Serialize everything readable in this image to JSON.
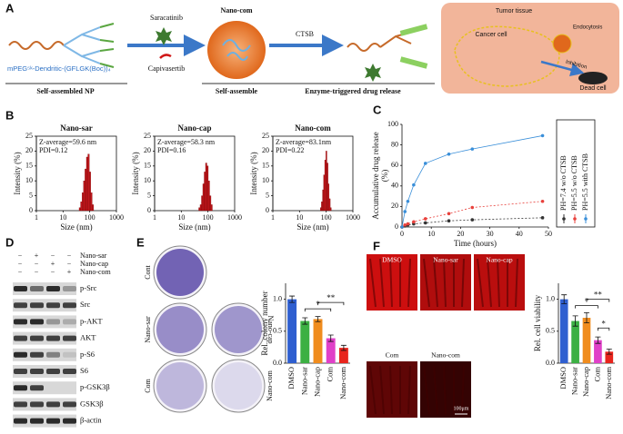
{
  "figure": {
    "panel_labels": [
      "A",
      "B",
      "C",
      "D",
      "E",
      "F"
    ],
    "schematic": {
      "drug1": "Saracatinib",
      "drug2": "Capivasertib",
      "particle": "Nano-com",
      "enzyme": "CTSB",
      "polymer": "mPEG⁵ᵏ-Dendritic-(GFLGK(Boc))₄",
      "steps": [
        "Self-assembled NP",
        "Self-assemble",
        "Enzyme-triggered drug release"
      ],
      "tissue": "Tumor tissue",
      "cell": "Cancer cell",
      "uptake": "Endocytosis",
      "inhibition": "Inhibition",
      "death": "Dead cell"
    },
    "western_blot": {
      "treatments": [
        "Nano-sar",
        "Nano-cap",
        "Nano-com"
      ],
      "signs": [
        [
          "−",
          "+",
          "−",
          "−"
        ],
        [
          "−",
          "−",
          "+",
          "−"
        ],
        [
          "−",
          "−",
          "−",
          "+"
        ]
      ],
      "proteins": [
        "p-Src",
        "Src",
        "p-AKT",
        "AKT",
        "p-S6",
        "S6",
        "p-GSK3β",
        "GSK3β",
        "β-actin"
      ]
    },
    "colony_labels": [
      "Cont",
      "Nano-sar",
      "Nano-cap",
      "Com",
      "Nano-com"
    ],
    "image_labels": [
      "DMSO",
      "Nano-sar",
      "Nano-cap",
      "Com",
      "Nano-com"
    ],
    "scale_bar": "100μm"
  },
  "chart_data": [
    {
      "type": "histogram",
      "title": "Nano-sar",
      "annotations": [
        "Z-average=59.6 nm",
        "PDI=0.12"
      ],
      "x_label": "Size (nm)",
      "y_label": "Intensity (%)",
      "bins": [
        40,
        45.3,
        51.4,
        58.3,
        66.1,
        74.9,
        84.9,
        96.2,
        109,
        123.6,
        140
      ],
      "counts": [
        1,
        3,
        6,
        10,
        14,
        18,
        19,
        13,
        6,
        2
      ],
      "color": "#c0171c",
      "xscale": "log",
      "xlim": [
        1,
        1000
      ],
      "xticks": [
        1,
        10,
        100,
        1000
      ],
      "ylim": [
        0,
        25
      ],
      "yticks": [
        0,
        5,
        10,
        15,
        20,
        25
      ]
    },
    {
      "type": "histogram",
      "title": "Nano-cap",
      "annotations": [
        "Z-average=58.3 nm",
        "PDI=0.16"
      ],
      "x_label": "Size (nm)",
      "y_label": "Intensity (%)",
      "bins": [
        45,
        50.6,
        56.9,
        64,
        72,
        81,
        91.1,
        102.5,
        115.3,
        129.7,
        145.9
      ],
      "counts": [
        1,
        2,
        5,
        9,
        13,
        16,
        15,
        10,
        5,
        2
      ],
      "color": "#c0171c",
      "xscale": "log",
      "xlim": [
        1,
        1000
      ],
      "xticks": [
        1,
        10,
        100,
        1000
      ],
      "ylim": [
        0,
        25
      ],
      "yticks": [
        0,
        5,
        10,
        15,
        20,
        25
      ]
    },
    {
      "type": "histogram",
      "title": "Nano-com",
      "annotations": [
        "Z-average=83.1nm",
        "PDI=0.22"
      ],
      "x_label": "Size (nm)",
      "y_label": "Intensity (%)",
      "bins": [
        60,
        66,
        72.6,
        79.9,
        87.9,
        96.7,
        106.4,
        117,
        128.7,
        141.6,
        155.7
      ],
      "counts": [
        1,
        3,
        7,
        12,
        17,
        20,
        16,
        9,
        4,
        1
      ],
      "color": "#c0171c",
      "xscale": "log",
      "xlim": [
        1,
        1000
      ],
      "xticks": [
        1,
        10,
        100,
        1000
      ],
      "ylim": [
        0,
        25
      ],
      "yticks": [
        0,
        5,
        10,
        15,
        20,
        25
      ]
    },
    {
      "type": "line",
      "x_label": "Time (hours)",
      "y_label": [
        "Accumulative drug release",
        "(%)"
      ],
      "x": [
        0,
        1,
        2,
        4,
        8,
        16,
        24,
        48
      ],
      "series": [
        {
          "name": "PH=7.4 w/o CTSB",
          "color": "#333333",
          "values": [
            0,
            1,
            2,
            3,
            4,
            6,
            7,
            9
          ]
        },
        {
          "name": "PH=5.5 w/o CTSB",
          "color": "#e8413c",
          "values": [
            0,
            2,
            3,
            5,
            8,
            13,
            19,
            25
          ]
        },
        {
          "name": "PH=5.5 with CTSB",
          "color": "#3a8fd9",
          "values": [
            0,
            15,
            25,
            41,
            62,
            71,
            76,
            89
          ]
        }
      ],
      "xlim": [
        0,
        50
      ],
      "xticks": [
        0,
        10,
        20,
        30,
        40,
        50
      ],
      "ylim": [
        0,
        100
      ],
      "yticks": [
        0,
        20,
        40,
        60,
        80,
        100
      ]
    },
    {
      "type": "bar",
      "y_label": "Rel. colony number",
      "categories": [
        "DMSO",
        "Nano-sar",
        "Nano-cap",
        "Com",
        "Nano-com"
      ],
      "values": [
        1.0,
        0.66,
        0.69,
        0.39,
        0.24
      ],
      "errors": [
        0.05,
        0.05,
        0.04,
        0.05,
        0.04
      ],
      "colors": [
        "#2f5fd0",
        "#3cb043",
        "#f08c1e",
        "#e040c8",
        "#e8241c"
      ],
      "annotations": [
        "*",
        "**"
      ],
      "ylim": [
        0,
        1.25
      ],
      "yticks": [
        {
          "value": 0,
          "label": "0.0"
        },
        {
          "value": 0.5,
          "label": "0.5"
        },
        {
          "value": 1,
          "label": "1.0"
        }
      ]
    },
    {
      "type": "bar",
      "y_label": "Rel. cell viability",
      "categories": [
        "DMSO",
        "Nano-sar",
        "Nano-cap",
        "Com",
        "Nano-com"
      ],
      "values": [
        1.0,
        0.66,
        0.71,
        0.36,
        0.18
      ],
      "errors": [
        0.07,
        0.08,
        0.08,
        0.05,
        0.04
      ],
      "colors": [
        "#2f5fd0",
        "#3cb043",
        "#f08c1e",
        "#e040c8",
        "#e8241c"
      ],
      "annotations": [
        "*",
        "**",
        "*"
      ],
      "ylim": [
        0,
        1.25
      ],
      "yticks": [
        {
          "value": 0,
          "label": "0.0"
        },
        {
          "value": 0.5,
          "label": "0.5"
        },
        {
          "value": 1,
          "label": "1.0"
        }
      ]
    }
  ]
}
